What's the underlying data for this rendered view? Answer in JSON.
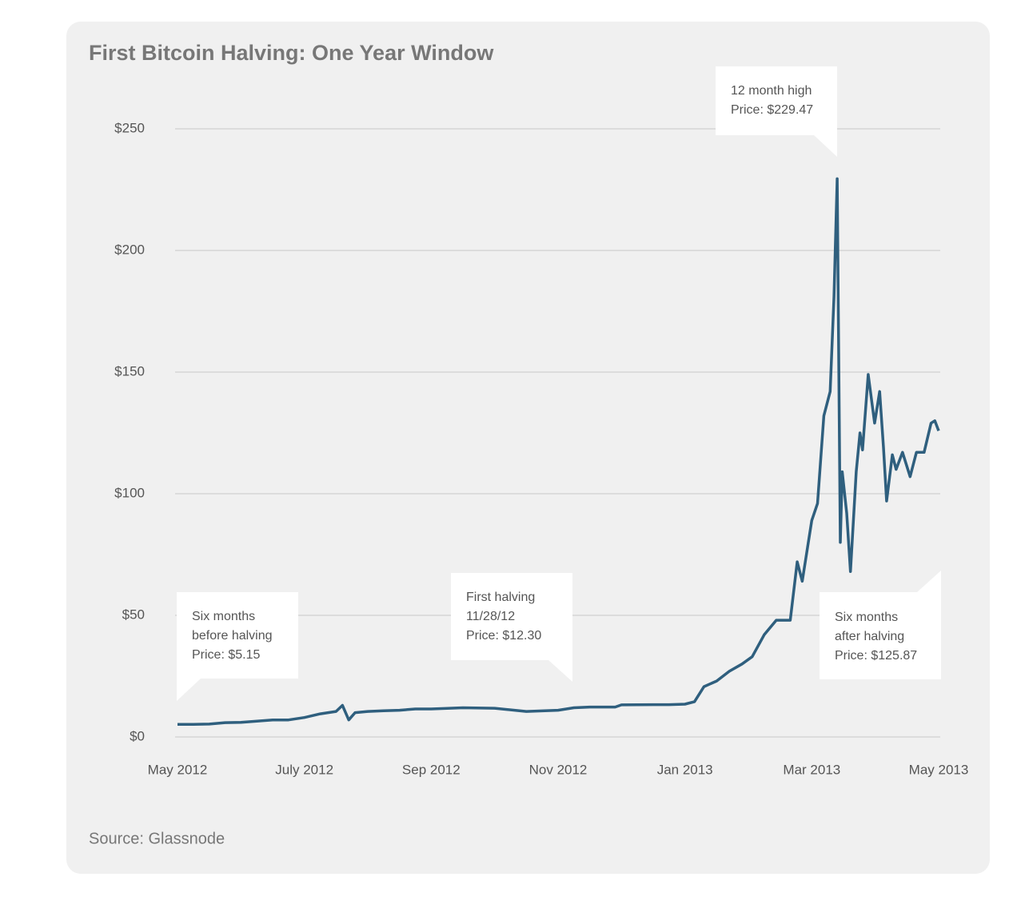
{
  "chart_data": {
    "type": "line",
    "title": "First Bitcoin Halving: One Year Window",
    "source": "Source: Glassnode",
    "color": "#2f5f7e",
    "grid": true,
    "x": [
      0,
      0.25,
      0.5,
      0.75,
      1.0,
      1.25,
      1.5,
      1.75,
      2.0,
      2.25,
      2.5,
      2.6,
      2.7,
      2.8,
      3.0,
      3.25,
      3.5,
      3.75,
      4.0,
      4.5,
      5.0,
      5.5,
      6.0,
      6.25,
      6.5,
      6.9,
      7.0,
      7.5,
      7.75,
      8.0,
      8.15,
      8.3,
      8.5,
      8.7,
      8.9,
      9.06,
      9.25,
      9.44,
      9.66,
      9.77,
      9.85,
      10.0,
      10.09,
      10.19,
      10.29,
      10.35,
      10.4,
      10.45,
      10.48,
      10.55,
      10.61,
      10.7,
      10.76,
      10.8,
      10.89,
      10.99,
      11.07,
      11.13,
      11.18,
      11.27,
      11.33,
      11.43,
      11.55,
      11.65,
      11.77,
      11.88,
      11.94,
      12.0
    ],
    "values": [
      5.15,
      5.2,
      5.3,
      5.9,
      6.0,
      6.5,
      7.0,
      7.0,
      8.0,
      9.5,
      10.5,
      13.0,
      7.0,
      10.0,
      10.5,
      10.8,
      11.0,
      11.5,
      11.5,
      12.0,
      11.8,
      10.5,
      11.0,
      12.0,
      12.3,
      12.3,
      13.2,
      13.3,
      13.3,
      13.5,
      14.5,
      20.7,
      23.0,
      27.0,
      30.0,
      33.0,
      42.0,
      48.0,
      48.0,
      72.0,
      64.0,
      89.0,
      96.0,
      132.0,
      142.0,
      181.0,
      229.47,
      80.0,
      109.0,
      92.0,
      68.0,
      109.0,
      125.0,
      118.0,
      149.0,
      129.0,
      142.0,
      119.0,
      97.0,
      116.0,
      110.0,
      117.0,
      107.0,
      117.0,
      117.0,
      129.0,
      130.0,
      125.87
    ],
    "xlim": [
      0,
      12
    ],
    "xticks": [
      {
        "value": 0,
        "label": "May 2012"
      },
      {
        "value": 2,
        "label": "July 2012"
      },
      {
        "value": 4,
        "label": "Sep 2012"
      },
      {
        "value": 6,
        "label": "Nov 2012"
      },
      {
        "value": 8,
        "label": "Jan 2013"
      },
      {
        "value": 10,
        "label": "Mar 2013"
      },
      {
        "value": 12,
        "label": "May 2013"
      }
    ],
    "ylim": [
      0,
      250
    ],
    "yticks": [
      {
        "value": 0,
        "label": "$0"
      },
      {
        "value": 50,
        "label": "$50"
      },
      {
        "value": 100,
        "label": "$100"
      },
      {
        "value": 150,
        "label": "$150"
      },
      {
        "value": 200,
        "label": "$200"
      },
      {
        "value": 250,
        "label": "$250"
      }
    ],
    "annotations": [
      [
        "Six months",
        "before halving",
        "Price: $5.15"
      ],
      [
        "First halving",
        "11/28/12",
        "Price: $12.30"
      ],
      [
        "12 month high",
        "Price: $229.47"
      ],
      [
        "Six months",
        "after halving",
        "Price: $125.87"
      ]
    ]
  }
}
